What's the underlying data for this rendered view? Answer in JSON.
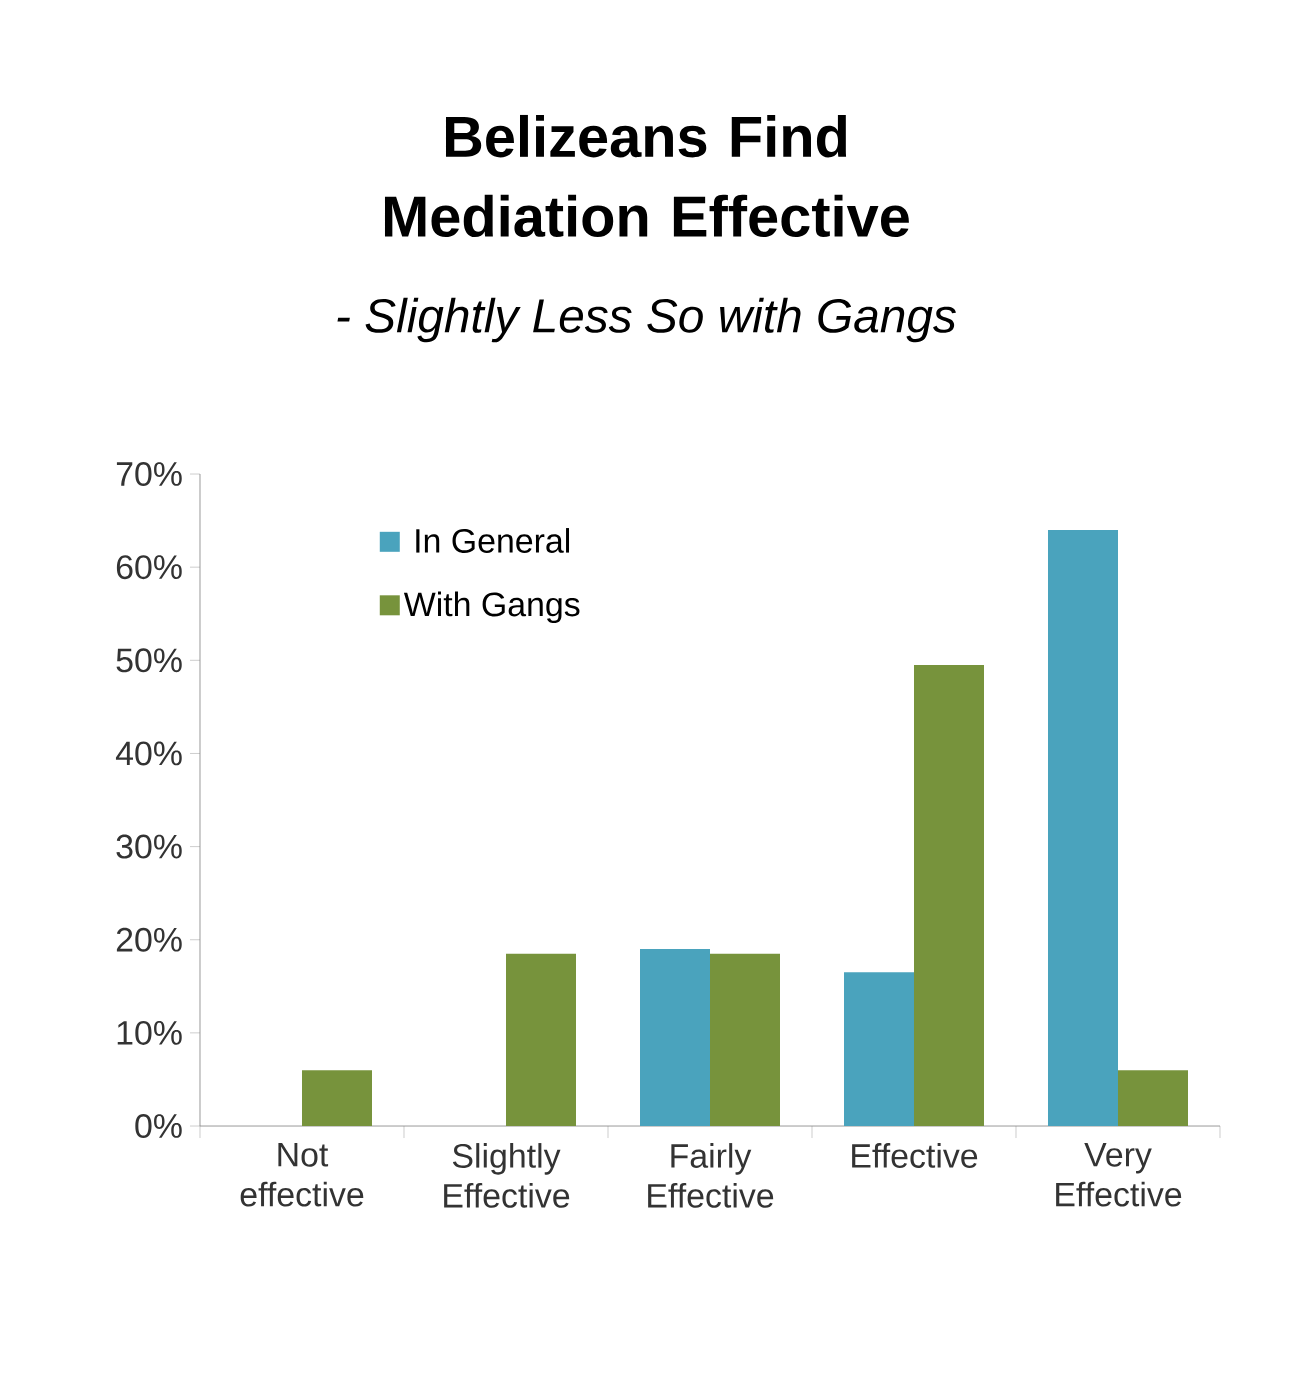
{
  "chart_data": {
    "type": "bar",
    "title": "Belizeans Find Mediation Effective",
    "subtitle": "- Slightly Less So with Gangs",
    "categories": [
      "Not effective",
      "Slightly Effective",
      "Fairly Effective",
      "Effective",
      "Very Effective"
    ],
    "series": [
      {
        "name": "In General",
        "color": "#4aa3bd",
        "values": [
          0,
          0,
          19,
          16.5,
          64
        ]
      },
      {
        "name": "With Gangs",
        "color": "#77933c",
        "values": [
          6,
          18.5,
          18.5,
          49.5,
          6
        ]
      }
    ],
    "ylim": [
      0,
      70
    ],
    "yticks": [
      {
        "value": 0,
        "label": "0%"
      },
      {
        "value": 10,
        "label": "10%"
      },
      {
        "value": 20,
        "label": "20%"
      },
      {
        "value": 30,
        "label": "30%"
      },
      {
        "value": 40,
        "label": "40%"
      },
      {
        "value": 50,
        "label": "50%"
      },
      {
        "value": 60,
        "label": "60%"
      },
      {
        "value": 70,
        "label": "70%"
      }
    ],
    "legend": "top left",
    "grid": false
  }
}
